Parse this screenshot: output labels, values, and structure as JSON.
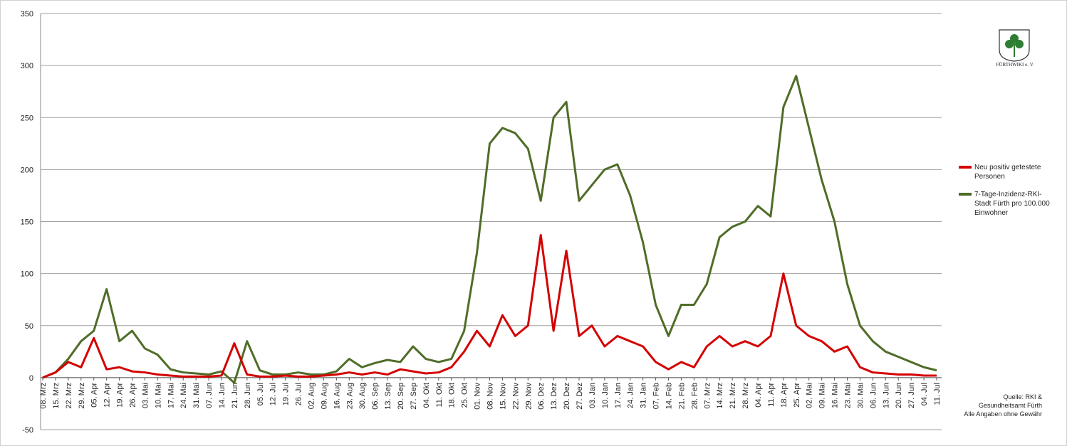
{
  "chart_data": {
    "type": "line",
    "categories": [
      "08. Mrz",
      "15. Mrz",
      "22. Mrz",
      "29. Mrz",
      "05. Apr",
      "12. Apr",
      "19. Apr",
      "26. Apr",
      "03. Mai",
      "10. Mai",
      "17. Mai",
      "24. Mai",
      "31. Mai",
      "07. Jun",
      "14. Jun",
      "21. Jun",
      "28. Jun",
      "05. Jul",
      "12. Jul",
      "19. Jul",
      "26. Jul",
      "02. Aug",
      "09. Aug",
      "16. Aug",
      "23. Aug",
      "30. Aug",
      "06. Sep",
      "13. Sep",
      "20. Sep",
      "27. Sep",
      "04. Okt",
      "11. Okt",
      "18. Okt",
      "25. Okt",
      "01. Nov",
      "08. Nov",
      "15. Nov",
      "22. Nov",
      "29. Nov",
      "06. Dez",
      "13. Dez",
      "20. Dez",
      "27. Dez",
      "03. Jan",
      "10. Jan",
      "17. Jan",
      "24. Jan",
      "31. Jan",
      "07. Feb",
      "14. Feb",
      "21. Feb",
      "28. Feb",
      "07. Mrz",
      "14. Mrz",
      "21. Mrz",
      "28. Mrz",
      "04. Apr",
      "11. Apr",
      "18. Apr",
      "25. Apr",
      "02. Mai",
      "09. Mai",
      "16. Mai",
      "23. Mai",
      "30. Mai",
      "06. Jun",
      "13. Jun",
      "20. Jun",
      "27. Jun",
      "04. Jul",
      "11. Jul"
    ],
    "series": [
      {
        "name": "Neu positiv getestete Personen",
        "color": "#d40000",
        "values": [
          0,
          5,
          15,
          10,
          38,
          8,
          10,
          6,
          5,
          3,
          2,
          1,
          1,
          1,
          2,
          33,
          3,
          1,
          1,
          2,
          1,
          1,
          2,
          3,
          5,
          3,
          5,
          3,
          8,
          6,
          4,
          5,
          10,
          25,
          45,
          30,
          60,
          40,
          50,
          137,
          45,
          122,
          40,
          50,
          30,
          40,
          35,
          30,
          15,
          8,
          15,
          10,
          30,
          40,
          30,
          35,
          30,
          40,
          100,
          50,
          40,
          35,
          25,
          30,
          10,
          5,
          4,
          3,
          3,
          2,
          2
        ]
      },
      {
        "name": "7-Tage-Inzidenz-RKI-Stadt Fürth pro 100.000 Einwohner",
        "color": "#4f6d28",
        "values": [
          0,
          5,
          18,
          35,
          45,
          85,
          35,
          45,
          28,
          22,
          8,
          5,
          4,
          3,
          6,
          -5,
          35,
          7,
          3,
          3,
          5,
          3,
          3,
          6,
          18,
          10,
          14,
          17,
          15,
          30,
          18,
          15,
          18,
          45,
          120,
          225,
          240,
          235,
          220,
          170,
          250,
          265,
          170,
          185,
          200,
          205,
          175,
          130,
          70,
          40,
          70,
          70,
          90,
          135,
          145,
          150,
          165,
          155,
          260,
          290,
          240,
          190,
          150,
          90,
          50,
          35,
          25,
          20,
          15,
          10,
          7
        ]
      }
    ],
    "ylim": [
      -50,
      350
    ],
    "yticks": [
      -50,
      0,
      50,
      100,
      150,
      200,
      250,
      300,
      350
    ],
    "grid": true,
    "source": [
      "Quelle: RKI &",
      "Gesundheitsamt Fürth",
      "Alle Angaben ohne Gewähr"
    ],
    "logo": "FÜRTHWIKI e. V."
  }
}
